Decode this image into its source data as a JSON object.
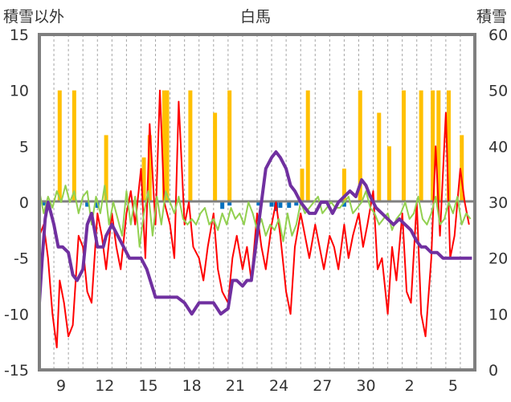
{
  "chart_data": {
    "type": "line",
    "title": "白馬",
    "ylabel_left": "積雪以外",
    "ylabel_right": "積雪",
    "ylim_left": [
      -15,
      15
    ],
    "ylim_right": [
      0,
      60
    ],
    "yticks_left": [
      "15",
      "10",
      "5",
      "0",
      "-5",
      "-10",
      "-15"
    ],
    "yticks_right": [
      "60",
      "50",
      "40",
      "30",
      "20",
      "10",
      "0"
    ],
    "xlim": [
      0,
      30
    ],
    "xtick_labels": [
      "9",
      "12",
      "15",
      "18",
      "21",
      "24",
      "27",
      "30",
      "2",
      "5"
    ],
    "xtick_positions": [
      1.5,
      4.5,
      7.5,
      10.5,
      13.5,
      16.5,
      19.5,
      22.5,
      25.5,
      28.5
    ],
    "grid": "vertical dashed lines at day boundaries",
    "series": [
      {
        "color": "#ffc000",
        "kind": "bar",
        "axis": "left",
        "x": [
          1.4,
          2.4,
          4.6,
          7.2,
          7.6,
          8.6,
          8.8,
          10.4,
          12.1,
          13.1,
          18.1,
          18.5,
          21.0,
          22.1,
          23.4,
          24.1,
          25.1,
          26.3,
          27.1,
          27.5,
          28.2,
          29.1
        ],
        "values": [
          10,
          10,
          6,
          4,
          6,
          10,
          10,
          10,
          8,
          10,
          3,
          10,
          3,
          10,
          8,
          5,
          10,
          10,
          10,
          10,
          10,
          6
        ]
      },
      {
        "color": "#0070c0",
        "kind": "bar",
        "axis": "left",
        "x": [
          0.3,
          0.6,
          3.3,
          4.0,
          12.6,
          13.1,
          15.1,
          16.0,
          16.3,
          16.6,
          17.2,
          17.7,
          21.0
        ],
        "values": [
          -0.3,
          -0.3,
          -0.4,
          -0.5,
          -0.6,
          -0.3,
          -0.3,
          -0.4,
          -0.8,
          -0.5,
          -0.5,
          -0.3,
          -0.4
        ]
      },
      {
        "color": "#ff0000",
        "kind": "line",
        "axis": "left",
        "x": [
          0.0,
          0.3,
          0.6,
          0.9,
          1.2,
          1.4,
          1.7,
          2.0,
          2.3,
          2.7,
          3.0,
          3.3,
          3.6,
          4.0,
          4.3,
          4.6,
          5.0,
          5.3,
          5.6,
          6.0,
          6.3,
          6.6,
          7.0,
          7.3,
          7.6,
          8.0,
          8.3,
          8.6,
          9.0,
          9.3,
          9.6,
          10.0,
          10.3,
          10.6,
          11.0,
          11.3,
          11.6,
          12.0,
          12.3,
          12.6,
          13.0,
          13.3,
          13.6,
          14.0,
          14.3,
          14.6,
          15.0,
          15.3,
          15.6,
          16.0,
          16.3,
          16.6,
          17.0,
          17.3,
          17.6,
          18.0,
          18.3,
          18.6,
          19.0,
          19.3,
          19.6,
          20.0,
          20.3,
          20.6,
          21.0,
          21.3,
          21.6,
          22.0,
          22.3,
          22.6,
          23.0,
          23.3,
          23.6,
          24.0,
          24.3,
          24.6,
          25.0,
          25.3,
          25.6,
          26.0,
          26.3,
          26.6,
          27.0,
          27.3,
          27.6,
          28.0,
          28.3,
          28.6,
          29.0,
          29.3,
          29.6
        ],
        "values": [
          -3,
          -2,
          -5,
          -10,
          -13,
          -7,
          -9,
          -12,
          -11,
          -3,
          -4,
          -8,
          -9,
          -1,
          -3,
          -6,
          -1,
          -4,
          -6,
          -1,
          1,
          -2,
          3,
          -5,
          7,
          -2,
          10,
          0,
          -2,
          -5,
          9,
          -2,
          0,
          -4,
          -5,
          -7,
          -4,
          -1,
          -6,
          -8,
          -9,
          -5,
          -3,
          -6,
          -4,
          -7,
          -1,
          -4,
          -6,
          -2,
          0,
          -3,
          -8,
          -10,
          -4,
          -1,
          -3,
          -5,
          -2,
          -4,
          -6,
          -3,
          -4,
          -6,
          -2,
          -5,
          -3,
          -1,
          -4,
          -2,
          1,
          -6,
          -5,
          -10,
          -4,
          -7,
          -1,
          -8,
          -9,
          0,
          -10,
          -12,
          -5,
          5,
          -3,
          8,
          -5,
          -3,
          3,
          0,
          -2
        ]
      },
      {
        "color": "#92d050",
        "kind": "line",
        "axis": "left",
        "x": [
          0.0,
          0.3,
          0.6,
          0.9,
          1.2,
          1.5,
          1.8,
          2.1,
          2.4,
          2.7,
          3.0,
          3.3,
          3.6,
          3.9,
          4.2,
          4.5,
          4.8,
          5.1,
          5.4,
          5.7,
          6.0,
          6.3,
          6.6,
          6.9,
          7.2,
          7.5,
          7.8,
          8.1,
          8.4,
          8.7,
          9.0,
          9.3,
          9.6,
          9.9,
          10.2,
          10.5,
          10.8,
          11.1,
          11.4,
          11.7,
          12.0,
          12.3,
          12.6,
          12.9,
          13.2,
          13.5,
          13.8,
          14.1,
          14.4,
          14.7,
          15.0,
          15.3,
          15.6,
          15.9,
          16.2,
          16.5,
          16.8,
          17.1,
          17.4,
          17.7,
          18.0,
          18.3,
          18.6,
          18.9,
          19.2,
          19.5,
          19.8,
          20.1,
          20.4,
          20.7,
          21.0,
          21.3,
          21.6,
          21.9,
          22.2,
          22.5,
          22.8,
          23.1,
          23.4,
          23.7,
          24.0,
          24.3,
          24.6,
          24.9,
          25.2,
          25.5,
          25.8,
          26.1,
          26.4,
          26.7,
          27.0,
          27.3,
          27.6,
          27.9,
          28.2,
          28.5,
          28.8,
          29.1,
          29.4,
          29.7
        ],
        "values": [
          1,
          -1,
          0.5,
          -0.5,
          1,
          0,
          1.5,
          0,
          1,
          -1,
          0.5,
          1,
          -2,
          0.5,
          -1,
          1.5,
          -2,
          0,
          -1.5,
          -3,
          1,
          -2,
          0.5,
          -4,
          -1,
          1,
          -3,
          0.5,
          -2,
          1,
          0,
          -1,
          0.5,
          -1.5,
          -2,
          -1.5,
          -2,
          -1,
          -0.5,
          -2,
          -1.5,
          -2.5,
          -1,
          -2,
          -0.5,
          -1.5,
          -1,
          -2,
          0,
          -1,
          -2.5,
          -1.5,
          -3,
          -2,
          -2.5,
          -1.5,
          -3.5,
          -1,
          -3,
          -2,
          0,
          -1,
          -0.5,
          0,
          0.5,
          -1,
          -0.5,
          0,
          -0.5,
          -0.5,
          0,
          0.5,
          -1,
          -0.5,
          0,
          1,
          -0.5,
          -1,
          -2,
          -1.5,
          -1,
          -2.5,
          -1.5,
          -1,
          0,
          -1.5,
          -1,
          0.5,
          -1.5,
          -2,
          -1,
          0.5,
          -2,
          -1.5,
          0,
          -1,
          0.5,
          -2,
          -1,
          -1.5
        ]
      },
      {
        "color": "#7030a0",
        "kind": "line",
        "axis": "right",
        "x": [
          0.0,
          0.2,
          0.4,
          0.6,
          0.8,
          1.0,
          1.3,
          1.6,
          2.0,
          2.3,
          2.6,
          3.0,
          3.3,
          3.6,
          4.0,
          4.4,
          4.6,
          5.0,
          5.4,
          5.8,
          6.2,
          6.6,
          7.0,
          7.4,
          8.0,
          8.5,
          9.0,
          9.5,
          10.0,
          10.5,
          11.0,
          11.5,
          12.0,
          12.5,
          13.0,
          13.3,
          13.6,
          14.0,
          14.3,
          14.6,
          15.0,
          15.3,
          15.6,
          16.0,
          16.3,
          16.6,
          17.0,
          17.3,
          17.6,
          18.0,
          18.3,
          18.6,
          19.0,
          19.4,
          19.8,
          20.2,
          20.6,
          21.0,
          21.4,
          21.8,
          22.2,
          22.5,
          22.8,
          23.2,
          23.6,
          24.0,
          24.4,
          24.8,
          25.2,
          25.6,
          26.0,
          26.3,
          26.6,
          27.0,
          27.4,
          27.8,
          28.2,
          28.6,
          29.0,
          29.4,
          29.8
        ],
        "values": [
          12,
          20,
          27,
          30,
          28,
          26,
          22,
          22,
          21,
          17,
          16,
          18,
          26,
          28,
          22,
          22,
          24,
          26,
          24,
          22,
          20,
          20,
          20,
          18,
          13,
          13,
          13,
          13,
          12,
          10,
          12,
          12,
          12,
          10,
          11,
          16,
          16,
          15,
          16,
          16,
          24,
          30,
          36,
          38,
          39,
          38,
          36,
          33,
          32,
          30,
          29,
          28,
          28,
          30,
          30,
          28,
          30,
          31,
          32,
          31,
          34,
          33,
          31,
          29,
          28,
          27,
          26,
          27,
          26,
          25,
          23,
          22,
          22,
          21,
          21,
          20,
          20,
          20,
          20,
          20,
          20
        ]
      }
    ]
  }
}
